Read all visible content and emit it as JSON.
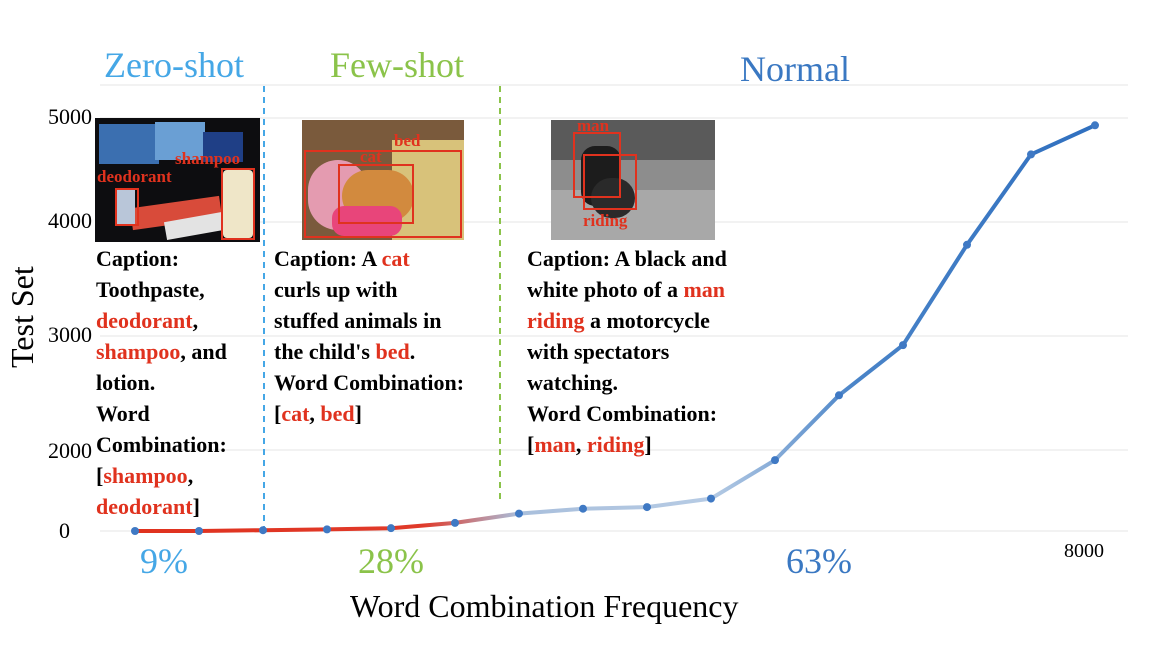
{
  "colors": {
    "zero_shot": "#45a7e6",
    "few_shot": "#8bc34a",
    "normal": "#3a78c2",
    "highlight": "#e0321e",
    "line_red": "#e0321e",
    "line_blue": "#3f79c4"
  },
  "regions": {
    "zero_shot": {
      "label": "Zero-shot",
      "percent": "9%"
    },
    "few_shot": {
      "label": "Few-shot",
      "percent": "28%"
    },
    "normal": {
      "label": "Normal",
      "percent": "63%"
    }
  },
  "chart_data": {
    "type": "line",
    "title": "",
    "xlabel": "Word Combination Frequency",
    "ylabel": "Test Set",
    "y_ticks": [
      "5000",
      "4000",
      "3000",
      "2000",
      "0"
    ],
    "x_tick_end": "8000",
    "grid": true,
    "series": [
      {
        "values": [
          0,
          0,
          20,
          40,
          70,
          200,
          430,
          550,
          590,
          800,
          1750,
          2480,
          2920,
          3800,
          4650,
          4930
        ]
      }
    ]
  },
  "examples": [
    {
      "caption_lines": [
        [
          {
            "t": "Caption:"
          }
        ],
        [
          {
            "t": "Toothpaste,"
          }
        ],
        [
          {
            "t": "deodorant",
            "hl": true
          },
          {
            "t": ","
          }
        ],
        [
          {
            "t": "shampoo",
            "hl": true
          },
          {
            "t": ", and"
          }
        ],
        [
          {
            "t": "lotion."
          }
        ],
        [
          {
            "t": "Word"
          }
        ],
        [
          {
            "t": "Combination:"
          }
        ],
        [
          {
            "t": "["
          },
          {
            "t": "shampoo",
            "hl": true
          },
          {
            "t": ","
          }
        ],
        [
          {
            "t": "deodorant",
            "hl": true
          },
          {
            "t": "]"
          }
        ]
      ],
      "photo_labels": [
        "shampoo",
        "deodorant"
      ]
    },
    {
      "caption_lines": [
        [
          {
            "t": "Caption: A "
          },
          {
            "t": "cat",
            "hl": true
          }
        ],
        [
          {
            "t": "curls up with"
          }
        ],
        [
          {
            "t": "stuffed animals in"
          }
        ],
        [
          {
            "t": "the child's "
          },
          {
            "t": "bed",
            "hl": true
          },
          {
            "t": "."
          }
        ],
        [
          {
            "t": "Word Combination:"
          }
        ],
        [
          {
            "t": "["
          },
          {
            "t": "cat",
            "hl": true
          },
          {
            "t": ", "
          },
          {
            "t": "bed",
            "hl": true
          },
          {
            "t": "]"
          }
        ]
      ],
      "photo_labels": [
        "bed",
        "cat"
      ]
    },
    {
      "caption_lines": [
        [
          {
            "t": "Caption: A black and"
          }
        ],
        [
          {
            "t": "white photo of a "
          },
          {
            "t": "man",
            "hl": true
          }
        ],
        [
          {
            "t": "riding",
            "hl": true
          },
          {
            "t": " a motorcycle"
          }
        ],
        [
          {
            "t": "with spectators"
          }
        ],
        [
          {
            "t": "watching."
          }
        ],
        [
          {
            "t": "Word Combination:"
          }
        ],
        [
          {
            "t": "["
          },
          {
            "t": "man",
            "hl": true
          },
          {
            "t": ", "
          },
          {
            "t": "riding",
            "hl": true
          },
          {
            "t": "]"
          }
        ]
      ],
      "photo_labels": [
        "man",
        "riding"
      ]
    }
  ]
}
